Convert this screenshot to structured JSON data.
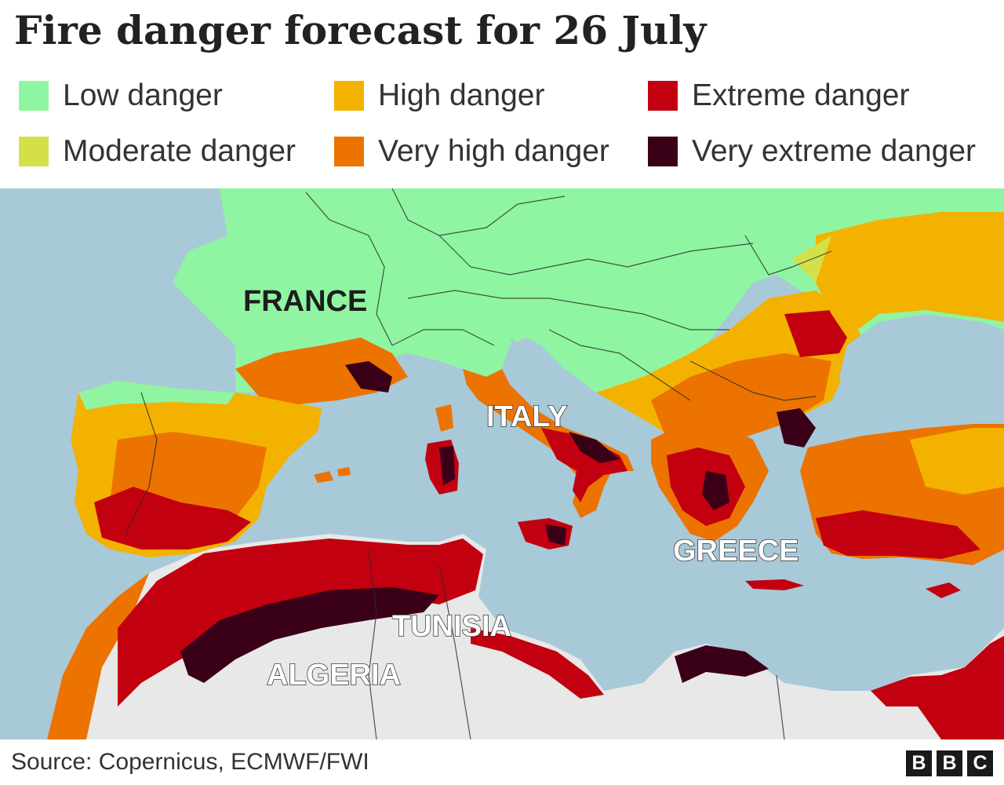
{
  "title": "Fire danger forecast for 26 July",
  "legend": [
    {
      "label": "Low danger",
      "color": "#8ff5a2"
    },
    {
      "label": "High danger",
      "color": "#f3b200"
    },
    {
      "label": "Extreme danger",
      "color": "#c20010"
    },
    {
      "label": "Moderate danger",
      "color": "#d4e04a"
    },
    {
      "label": "Very high danger",
      "color": "#ec7300"
    },
    {
      "label": "Very extreme danger",
      "color": "#3a0018"
    }
  ],
  "map": {
    "sea_color": "#a8c9d8",
    "nodata_color": "#e8e8e8",
    "labels": {
      "france": "FRANCE",
      "italy": "ITALY",
      "greece": "GREECE",
      "tunisia": "TUNISIA",
      "algeria": "ALGERIA"
    }
  },
  "footer": {
    "source": "Source: Copernicus, ECMWF/FWI",
    "logo_letters": [
      "B",
      "B",
      "C"
    ]
  }
}
